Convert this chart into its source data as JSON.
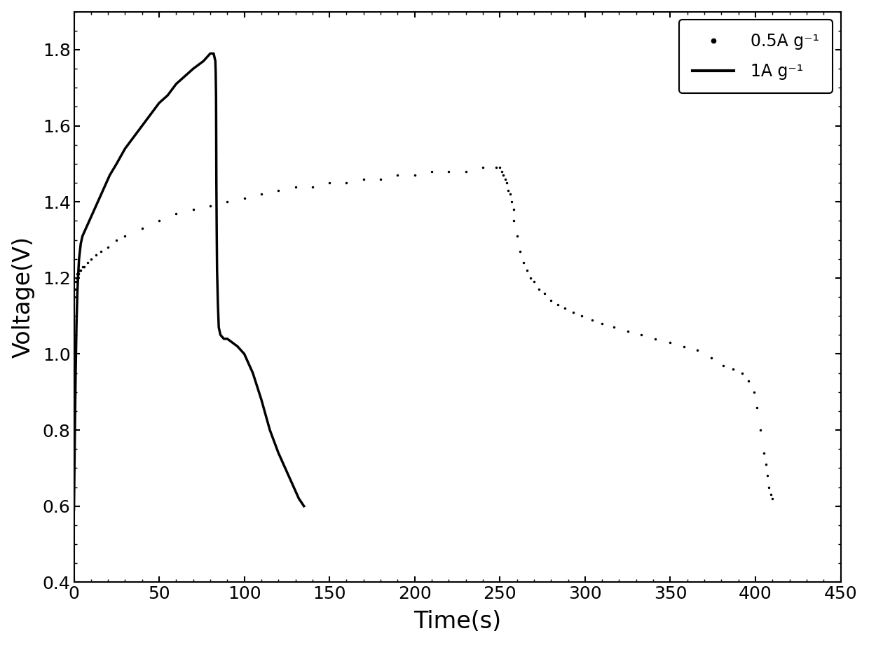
{
  "title": "",
  "xlabel": "Time(s)",
  "ylabel": "Voltage(V)",
  "xlim": [
    0,
    450
  ],
  "ylim": [
    0.4,
    1.9
  ],
  "xticks": [
    0,
    50,
    100,
    150,
    200,
    250,
    300,
    350,
    400,
    450
  ],
  "yticks": [
    0.4,
    0.6,
    0.8,
    1.0,
    1.2,
    1.4,
    1.6,
    1.8
  ],
  "line_color": "#000000",
  "dot_color": "#000000",
  "background": "#ffffff",
  "legend_dot_label": "0.5A g⁻¹",
  "legend_line_label": "1A g⁻¹",
  "curve1A_x": [
    0,
    0.5,
    1.0,
    1.5,
    2.0,
    2.5,
    3.0,
    3.5,
    4.0,
    5.0,
    6.0,
    7.0,
    8.0,
    10,
    12,
    15,
    18,
    21,
    25,
    30,
    35,
    40,
    45,
    50,
    55,
    60,
    65,
    70,
    73,
    76,
    78,
    80,
    81,
    82,
    82.5,
    83.0,
    83.2,
    83.4,
    83.5,
    83.6,
    83.8,
    84.0,
    84.5,
    85.0,
    86.0,
    88.0,
    90.0,
    93.0,
    96.0,
    100.0,
    105.0,
    110.0,
    115.0,
    120.0,
    125.0,
    128.0,
    130.0,
    132.0,
    133.5,
    135.0
  ],
  "curve1A_y": [
    0.59,
    0.78,
    0.95,
    1.08,
    1.16,
    1.21,
    1.25,
    1.27,
    1.29,
    1.31,
    1.32,
    1.33,
    1.34,
    1.36,
    1.38,
    1.41,
    1.44,
    1.47,
    1.5,
    1.54,
    1.57,
    1.6,
    1.63,
    1.66,
    1.68,
    1.71,
    1.73,
    1.75,
    1.76,
    1.77,
    1.78,
    1.79,
    1.79,
    1.79,
    1.78,
    1.77,
    1.74,
    1.68,
    1.58,
    1.45,
    1.32,
    1.22,
    1.13,
    1.07,
    1.05,
    1.04,
    1.04,
    1.03,
    1.02,
    1.0,
    0.95,
    0.88,
    0.8,
    0.74,
    0.69,
    0.66,
    0.64,
    0.62,
    0.61,
    0.6
  ],
  "curve05A_charge_x": [
    0,
    0.5,
    1.0,
    1.5,
    2.0,
    2.5,
    3.0,
    3.5,
    4.0,
    5.0,
    6.0,
    8.0,
    10,
    13,
    16,
    20,
    25,
    30,
    40,
    50,
    60,
    70,
    80,
    90,
    100,
    110,
    120,
    130,
    140,
    150,
    160,
    170,
    180,
    190,
    200,
    210,
    220,
    230,
    240,
    248,
    250,
    251,
    252,
    253,
    254,
    255,
    256,
    257,
    258
  ],
  "curve05A_charge_y": [
    1.15,
    1.17,
    1.19,
    1.2,
    1.21,
    1.21,
    1.22,
    1.22,
    1.22,
    1.23,
    1.23,
    1.24,
    1.25,
    1.26,
    1.27,
    1.28,
    1.3,
    1.31,
    1.33,
    1.35,
    1.37,
    1.38,
    1.39,
    1.4,
    1.41,
    1.42,
    1.43,
    1.44,
    1.44,
    1.45,
    1.45,
    1.46,
    1.46,
    1.47,
    1.47,
    1.48,
    1.48,
    1.48,
    1.49,
    1.49,
    1.49,
    1.48,
    1.47,
    1.46,
    1.45,
    1.43,
    1.42,
    1.4,
    1.38
  ],
  "curve05A_discharge_x": [
    258,
    260,
    262,
    264,
    266,
    268,
    270,
    273,
    276,
    280,
    284,
    288,
    293,
    298,
    304,
    310,
    317,
    325,
    333,
    341,
    350,
    358,
    366,
    374,
    381,
    387,
    392,
    396,
    399,
    401,
    403,
    405,
    406,
    407,
    408,
    409,
    410
  ],
  "curve05A_discharge_y": [
    1.35,
    1.31,
    1.27,
    1.24,
    1.22,
    1.2,
    1.19,
    1.17,
    1.16,
    1.14,
    1.13,
    1.12,
    1.11,
    1.1,
    1.09,
    1.08,
    1.07,
    1.06,
    1.05,
    1.04,
    1.03,
    1.02,
    1.01,
    0.99,
    0.97,
    0.96,
    0.95,
    0.93,
    0.9,
    0.86,
    0.8,
    0.74,
    0.71,
    0.68,
    0.65,
    0.63,
    0.62
  ]
}
